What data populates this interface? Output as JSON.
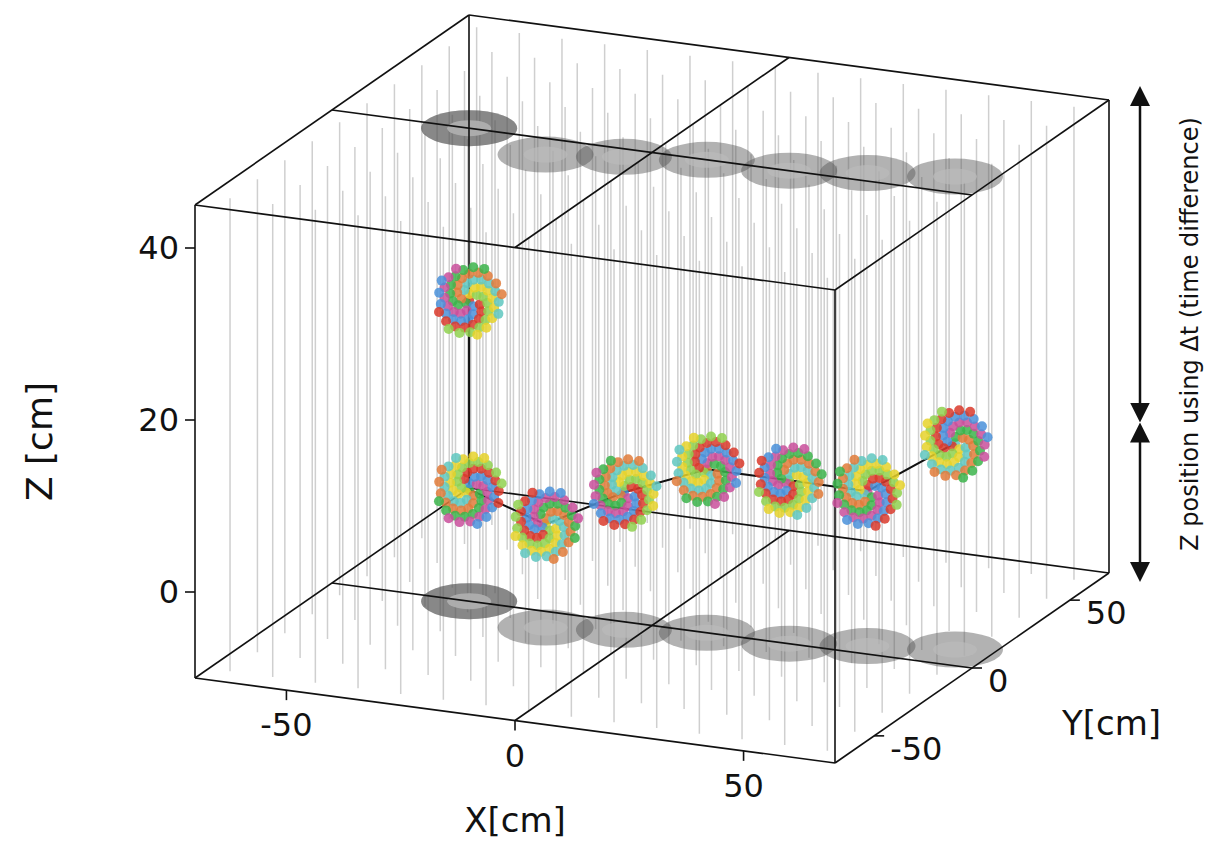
{
  "chart_data": {
    "type": "scatter3d",
    "xlabel": "X[cm]",
    "ylabel": "Y[cm]",
    "zlabel": "Z [cm]",
    "annotation": "Z position using Δt (time difference)",
    "xlim": [
      -70,
      70
    ],
    "ylim": [
      -70,
      70
    ],
    "zlim": [
      -10,
      45
    ],
    "xticks": [
      -50,
      0,
      50
    ],
    "yticks": [
      -50,
      0,
      50
    ],
    "zticks": [
      0,
      20,
      40
    ],
    "grid": true,
    "clusters": {
      "x": [
        -40,
        -40,
        -19,
        -4,
        12,
        30,
        45,
        62
      ],
      "y": [
        0,
        0,
        -10,
        -5,
        0,
        0,
        5,
        10
      ],
      "z": [
        25,
        3,
        2,
        6,
        9,
        9,
        8,
        14
      ]
    }
  }
}
